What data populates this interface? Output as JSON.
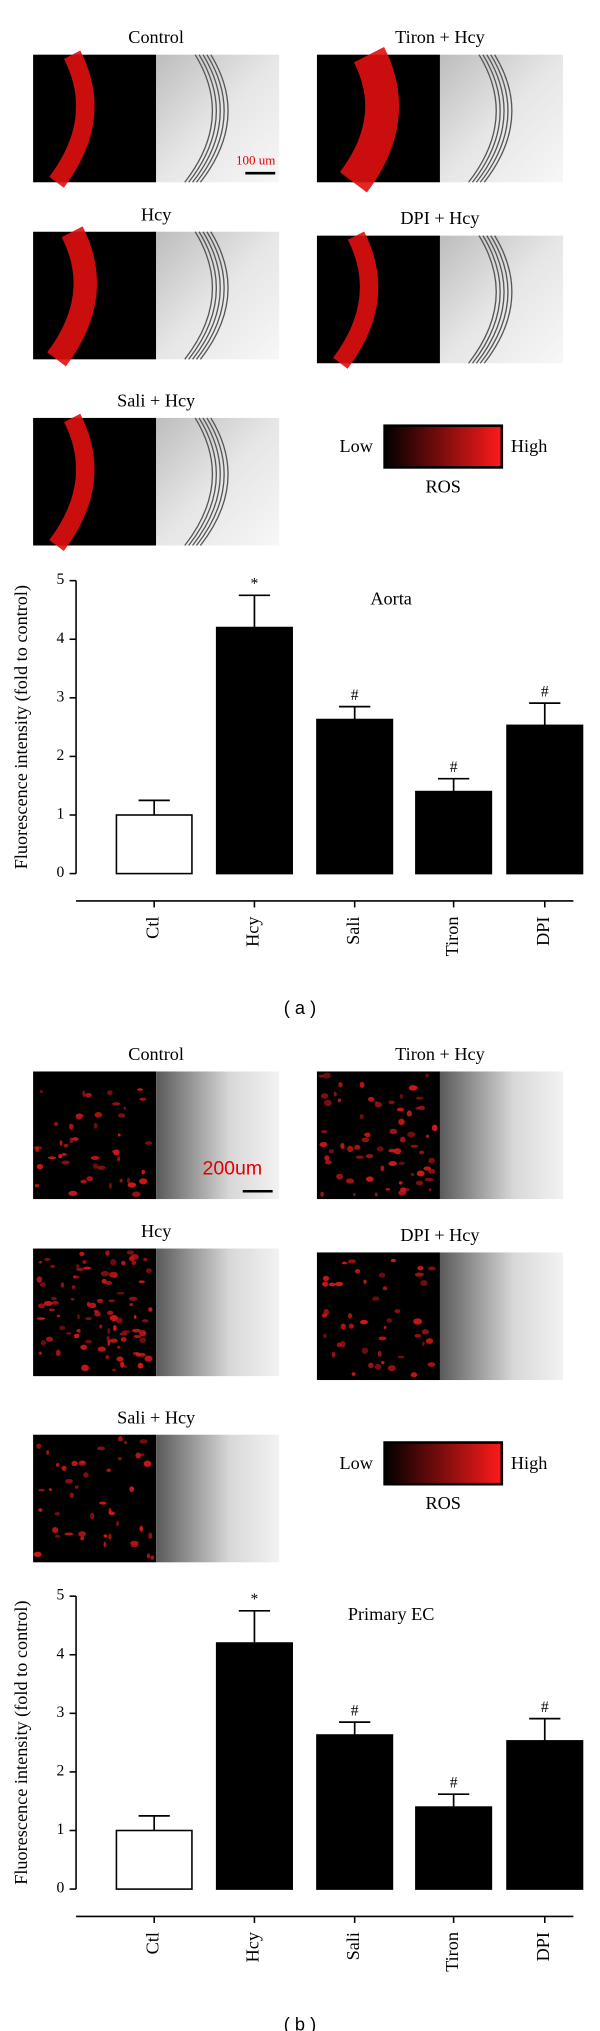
{
  "panels": [
    {
      "images": [
        "Control",
        "Tiron + Hcy",
        "Hcy",
        "DPI + Hcy",
        "Sali + Hcy"
      ],
      "scale_bar": "100 um",
      "colorbar": {
        "low": "Low",
        "high": "High",
        "label": "ROS"
      },
      "caption": "( a )"
    },
    {
      "images": [
        "Control",
        "Tiron + Hcy",
        "Hcy",
        "DPI + Hcy",
        "Sali + Hcy"
      ],
      "scale_bar": "200um",
      "colorbar": {
        "low": "Low",
        "high": "High",
        "label": "ROS"
      },
      "caption": "( b )"
    }
  ],
  "chart_data": [
    {
      "type": "bar",
      "title": "Aorta",
      "ylabel": "Fluorescence intensity (fold to control)",
      "categories": [
        "Ctl",
        "Hcy",
        "Sali",
        "Tiron",
        "DPI"
      ],
      "values": [
        1.0,
        4.2,
        2.63,
        1.4,
        2.53
      ],
      "errors": [
        0.25,
        0.55,
        0.22,
        0.22,
        0.38
      ],
      "annotations": [
        null,
        "*",
        "#",
        "#",
        "#"
      ],
      "colors": [
        "#ffffff",
        "#000000",
        "#000000",
        "#000000",
        "#000000"
      ],
      "ylim": [
        0,
        5
      ],
      "yticks": [
        0,
        1,
        2,
        3,
        4,
        5
      ]
    },
    {
      "type": "bar",
      "title": "Primary EC",
      "ylabel": "Fluorescence intensity (fold to control)",
      "categories": [
        "Ctl",
        "Hcy",
        "Sali",
        "Tiron",
        "DPI"
      ],
      "values": [
        1.0,
        4.2,
        2.63,
        1.4,
        2.53
      ],
      "errors": [
        0.25,
        0.55,
        0.22,
        0.22,
        0.38
      ],
      "annotations": [
        null,
        "*",
        "#",
        "#",
        "#"
      ],
      "colors": [
        "#ffffff",
        "#000000",
        "#000000",
        "#000000",
        "#000000"
      ],
      "ylim": [
        0,
        5
      ],
      "yticks": [
        0,
        1,
        2,
        3,
        4,
        5
      ]
    }
  ]
}
